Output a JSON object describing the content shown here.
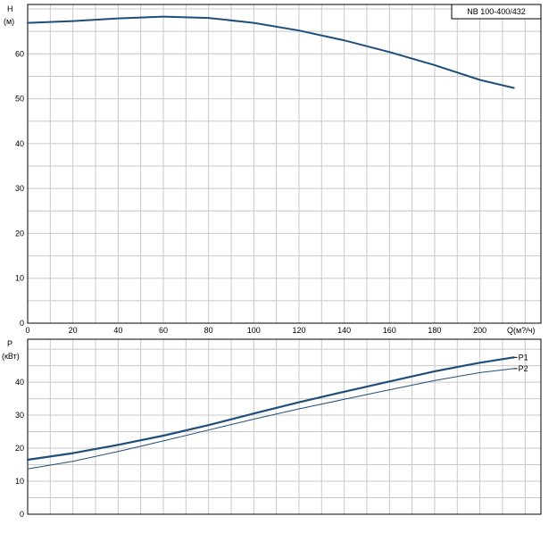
{
  "chart_data": [
    {
      "type": "line",
      "title": "NB 100-400/432",
      "ylabel": "H",
      "yunit": "(м)",
      "xlabel": "Q(м?/ч)",
      "xlim": [
        0,
        227
      ],
      "ylim": [
        0,
        71
      ],
      "xticks": [
        0,
        20,
        40,
        60,
        80,
        100,
        120,
        140,
        160,
        180,
        200
      ],
      "yticks": [
        0,
        10,
        20,
        30,
        40,
        50,
        60
      ],
      "grid": true,
      "series": [
        {
          "name": "",
          "color": "#1f4e79",
          "points": [
            [
              0,
              66.9
            ],
            [
              20,
              67.3
            ],
            [
              40,
              67.9
            ],
            [
              60,
              68.3
            ],
            [
              80,
              68.0
            ],
            [
              100,
              66.9
            ],
            [
              120,
              65.2
            ],
            [
              140,
              63.0
            ],
            [
              160,
              60.4
            ],
            [
              180,
              57.5
            ],
            [
              200,
              54.2
            ],
            [
              215,
              52.4
            ]
          ]
        }
      ]
    },
    {
      "type": "line",
      "ylabel": "P",
      "yunit": "(кВт)",
      "xlim": [
        0,
        227
      ],
      "ylim": [
        0,
        53
      ],
      "xticks": [
        0,
        20,
        40,
        60,
        80,
        100,
        120,
        140,
        160,
        180,
        200
      ],
      "yticks": [
        0,
        10,
        20,
        30,
        40
      ],
      "grid": true,
      "series": [
        {
          "name": "P1",
          "color": "#1f4e79",
          "points": [
            [
              0,
              16.5
            ],
            [
              20,
              18.5
            ],
            [
              40,
              21.0
            ],
            [
              60,
              23.8
            ],
            [
              80,
              27.0
            ],
            [
              100,
              30.5
            ],
            [
              120,
              33.9
            ],
            [
              140,
              37.1
            ],
            [
              160,
              40.2
            ],
            [
              180,
              43.3
            ],
            [
              200,
              45.9
            ],
            [
              215,
              47.5
            ]
          ]
        },
        {
          "name": "P2",
          "color": "#1f4e79",
          "points": [
            [
              0,
              13.7
            ],
            [
              20,
              16.0
            ],
            [
              40,
              19.0
            ],
            [
              60,
              22.2
            ],
            [
              80,
              25.5
            ],
            [
              100,
              28.8
            ],
            [
              120,
              31.9
            ],
            [
              140,
              34.8
            ],
            [
              160,
              37.7
            ],
            [
              180,
              40.5
            ],
            [
              200,
              42.9
            ],
            [
              215,
              44.1
            ]
          ]
        }
      ]
    }
  ]
}
